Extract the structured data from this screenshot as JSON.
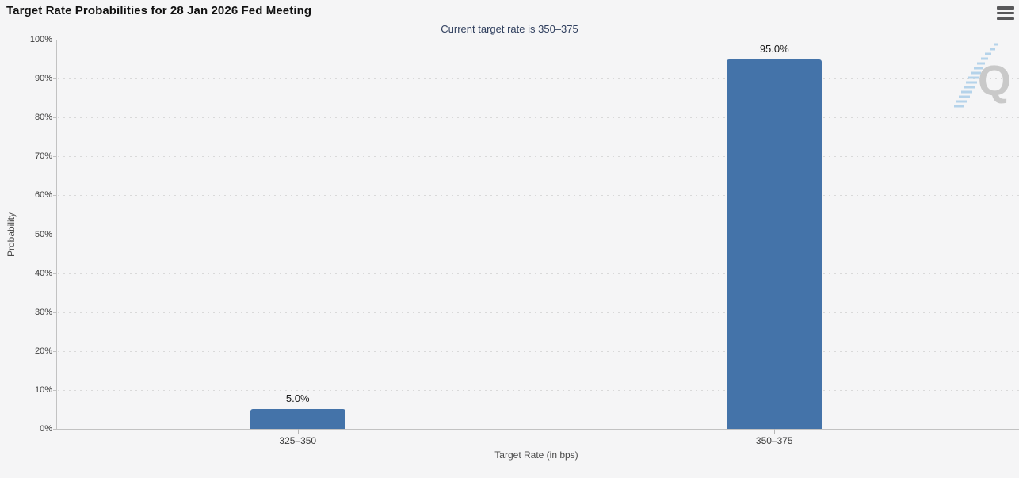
{
  "header": {
    "title": "Target Rate Probabilities for 28 Jan 2026 Fed Meeting",
    "menu_icon": "hamburger-menu-icon"
  },
  "chart_data": {
    "type": "bar",
    "title": "Target Rate Probabilities for 28 Jan 2026 Fed Meeting",
    "subtitle": "Current target rate is 350–375",
    "categories": [
      "325–350",
      "350–375"
    ],
    "values": [
      5.0,
      95.0
    ],
    "value_labels": [
      "5.0%",
      "95.0%"
    ],
    "xlabel": "Target Rate (in bps)",
    "ylabel": "Probability",
    "ylim": [
      0,
      100
    ],
    "ytick_values": [
      0,
      10,
      20,
      30,
      40,
      50,
      60,
      70,
      80,
      90,
      100
    ],
    "ytick_labels": [
      "0%",
      "10%",
      "20%",
      "30%",
      "40%",
      "50%",
      "60%",
      "70%",
      "80%",
      "90%",
      "100%"
    ],
    "grid": "dotted-horizontal",
    "legend": "none",
    "bar_color": "#4473a9",
    "watermark_letter": "Q"
  },
  "colors": {
    "background": "#f5f5f6",
    "bar": "#4473a9",
    "subtitle_text": "#31405f",
    "axis_line": "#c2c2c2",
    "gridline": "#d9d9d9",
    "watermark_gray": "#c9c9c9",
    "watermark_blue": "#b5d3ea"
  }
}
